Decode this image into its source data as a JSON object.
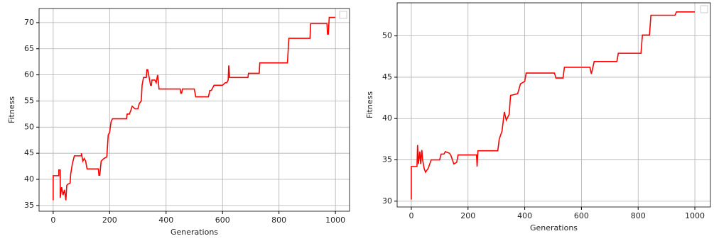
{
  "chart_data": [
    {
      "type": "line",
      "xlabel": "Generations",
      "ylabel": "Fitness",
      "grid": true,
      "legend": "upper right",
      "xlim": [
        -50,
        1050
      ],
      "ylim": [
        33.9,
        72.7
      ],
      "xticks": [
        0,
        200,
        400,
        600,
        800,
        1000
      ],
      "yticks": [
        35,
        40,
        45,
        50,
        55,
        60,
        65,
        70
      ],
      "series": [
        {
          "color": "#ff0000",
          "x": [
            0,
            0,
            20,
            20,
            25,
            25,
            30,
            35,
            40,
            45,
            48,
            50,
            60,
            62,
            68,
            75,
            100,
            100,
            105,
            110,
            115,
            120,
            160,
            162,
            165,
            170,
            180,
            190,
            195,
            200,
            205,
            210,
            260,
            262,
            270,
            275,
            280,
            290,
            300,
            305,
            312,
            315,
            320,
            330,
            332,
            335,
            345,
            348,
            350,
            360,
            365,
            370,
            372,
            375,
            450,
            452,
            455,
            458,
            460,
            500,
            505,
            510,
            550,
            555,
            560,
            570,
            600,
            610,
            615,
            620,
            622,
            625,
            690,
            692,
            730,
            732,
            830,
            835,
            910,
            912,
            970,
            972,
            975,
            978,
            1000
          ],
          "values": [
            36,
            40.7,
            40.7,
            41.8,
            41.8,
            36.5,
            38.5,
            37,
            38,
            36,
            38.8,
            39,
            39.3,
            41,
            43,
            44.5,
            44.5,
            45,
            43.5,
            44,
            43.5,
            42,
            42,
            40.8,
            40.8,
            43.5,
            44,
            44.3,
            48.5,
            49,
            51,
            51.6,
            51.6,
            52.5,
            52.5,
            53.2,
            54,
            53.5,
            53.5,
            54.5,
            55,
            58,
            59.5,
            59.5,
            61,
            61,
            58,
            58,
            59,
            59,
            58.5,
            60,
            59,
            57.3,
            57.3,
            56.5,
            56.5,
            57.3,
            57.3,
            57.3,
            55.8,
            55.8,
            55.8,
            57,
            57,
            58,
            58,
            58.5,
            58.5,
            59,
            61.8,
            59.5,
            59.5,
            60.3,
            60.3,
            62.3,
            62.3,
            67,
            67,
            69.8,
            69.8,
            67.8,
            67.8,
            71,
            71
          ]
        }
      ]
    },
    {
      "type": "line",
      "xlabel": "Generations",
      "ylabel": "Fitness",
      "grid": true,
      "legend": "upper right",
      "xlim": [
        -50,
        1055
      ],
      "ylim": [
        29.3,
        54
      ],
      "xticks": [
        0,
        200,
        400,
        600,
        800,
        1000
      ],
      "yticks": [
        30,
        35,
        40,
        45,
        50
      ],
      "series": [
        {
          "color": "#ff0000",
          "x": [
            0,
            0,
            20,
            22,
            25,
            30,
            33,
            37,
            40,
            45,
            50,
            60,
            70,
            100,
            105,
            115,
            120,
            135,
            140,
            150,
            160,
            165,
            230,
            232,
            235,
            305,
            310,
            320,
            328,
            335,
            345,
            350,
            375,
            385,
            400,
            405,
            505,
            510,
            535,
            540,
            630,
            635,
            645,
            725,
            730,
            810,
            815,
            840,
            845,
            930,
            935,
            1000
          ],
          "values": [
            30.2,
            34.2,
            34.2,
            36.8,
            34.5,
            36,
            34.5,
            36.2,
            35,
            34,
            33.5,
            34,
            35,
            35,
            35.7,
            35.7,
            36,
            35.8,
            35.5,
            34.5,
            34.7,
            35.6,
            35.6,
            34.2,
            36.1,
            36.1,
            37.5,
            38.5,
            40.8,
            39.8,
            40.5,
            42.8,
            43,
            44.2,
            44.5,
            45.5,
            45.5,
            44.9,
            44.9,
            46.2,
            46.2,
            45.4,
            46.9,
            46.9,
            47.9,
            47.9,
            50.1,
            50.1,
            52.5,
            52.5,
            52.9,
            52.9
          ]
        }
      ]
    }
  ]
}
